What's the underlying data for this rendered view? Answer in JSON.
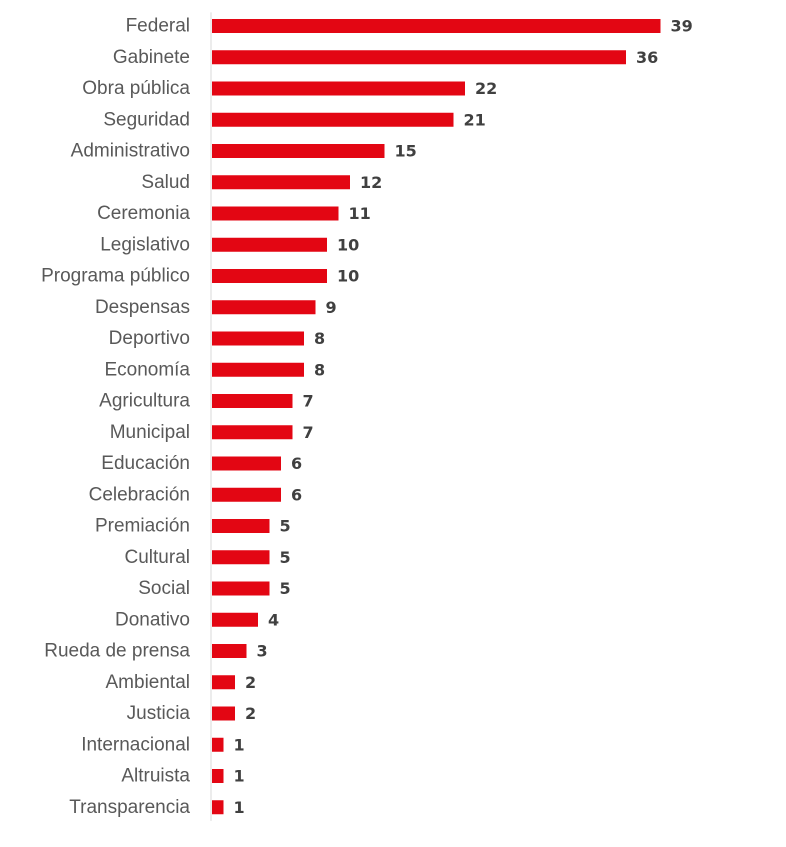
{
  "chart_data": {
    "type": "bar",
    "orientation": "horizontal",
    "categories": [
      "Federal",
      "Gabinete",
      "Obra pública",
      "Seguridad",
      "Administrativo",
      "Salud",
      "Ceremonia",
      "Legislativo",
      "Programa público",
      "Despensas",
      "Deportivo",
      "Economía",
      "Agricultura",
      "Municipal",
      "Educación",
      "Celebración",
      "Premiación",
      "Cultural",
      "Social",
      "Donativo",
      "Rueda de prensa",
      "Ambiental",
      "Justicia",
      "Internacional",
      "Altruista",
      "Transparencia"
    ],
    "values": [
      39,
      36,
      22,
      21,
      15,
      12,
      11,
      10,
      10,
      9,
      8,
      8,
      7,
      7,
      6,
      6,
      5,
      5,
      5,
      4,
      3,
      2,
      2,
      1,
      1,
      1
    ],
    "title": "",
    "xlabel": "",
    "ylabel": "",
    "data_labels": true,
    "grid": false,
    "legend": "none",
    "bar_color": "#E30613",
    "axis_color": "#D9D9D9",
    "category_label_color": "#595959",
    "data_label_color": "#404040"
  }
}
